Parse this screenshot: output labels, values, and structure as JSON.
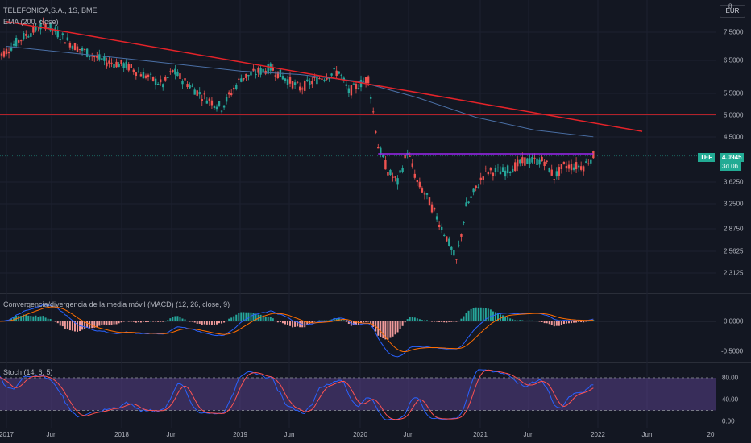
{
  "header": {
    "symbol_title": "TELEFONICA,S.A., 1S, BME",
    "indicator_ema": "EMA (200, close)",
    "currency": "EUR"
  },
  "price_axis": {
    "ticks": [
      "7.5000",
      "6.5000",
      "5.5000",
      "5.0000",
      "4.5000",
      "3.6250",
      "3.2500",
      "2.8750",
      "2.5625",
      "2.3125"
    ],
    "top_partial": "8"
  },
  "last_price": {
    "ticker": "TEF",
    "value": "4.0945",
    "countdown": "3d 0h"
  },
  "macd": {
    "title": "Convergencia/divergencia de la media móvil (MACD) (12, 26, close, 9)",
    "ticks": [
      "0.0000",
      "-0.5000"
    ]
  },
  "stoch": {
    "title": "Stoch (14, 6, 5)",
    "ticks": [
      "80.00",
      "40.00",
      "0.00"
    ]
  },
  "time_axis": {
    "labels": [
      "2017",
      "Jun",
      "2018",
      "Jun",
      "2019",
      "Jun",
      "2020",
      "Jun",
      "2021",
      "Jun",
      "2022",
      "Jun",
      "20"
    ]
  },
  "colors": {
    "background": "#131722",
    "up": "#26a69a",
    "down": "#ef5350",
    "ema": "#4a6fa5",
    "trendline": "#e52329",
    "resistance": "#9c27f0",
    "macd_line": "#2962ff",
    "signal_line": "#ff6d00",
    "stoch_band": "#7e57c2"
  },
  "chart_data": {
    "type": "candlestick",
    "x_range": [
      "2016-12",
      "2022-12"
    ],
    "y_scale": "log",
    "y_range": [
      2.2,
      8.3
    ],
    "ema_points": [
      [
        "2017-01",
        7.0
      ],
      [
        "2018-01",
        6.6
      ],
      [
        "2019-01",
        6.2
      ],
      [
        "2019-07",
        6.1
      ],
      [
        "2020-01",
        5.9
      ],
      [
        "2020-07",
        5.45
      ],
      [
        "2021-01",
        4.95
      ],
      [
        "2021-07",
        4.65
      ],
      [
        "2022-01",
        4.5
      ]
    ],
    "close_path": [
      [
        "2016-12",
        6.6
      ],
      [
        "2017-03",
        7.4
      ],
      [
        "2017-05",
        7.8
      ],
      [
        "2017-08",
        7.0
      ],
      [
        "2017-11",
        6.5
      ],
      [
        "2018-01",
        6.4
      ],
      [
        "2018-03",
        6.1
      ],
      [
        "2018-05",
        5.8
      ],
      [
        "2018-06",
        6.2
      ],
      [
        "2018-09",
        5.5
      ],
      [
        "2018-11",
        5.2
      ],
      [
        "2019-01",
        6.0
      ],
      [
        "2019-04",
        6.3
      ],
      [
        "2019-07",
        5.7
      ],
      [
        "2019-09",
        6.0
      ],
      [
        "2019-11",
        6.2
      ],
      [
        "2019-12",
        5.6
      ],
      [
        "2020-02",
        6.0
      ],
      [
        "2020-03",
        4.3
      ],
      [
        "2020-04",
        3.8
      ],
      [
        "2020-05",
        3.6
      ],
      [
        "2020-06",
        4.2
      ],
      [
        "2020-07",
        3.6
      ],
      [
        "2020-08",
        3.35
      ],
      [
        "2020-10",
        2.75
      ],
      [
        "2020-11",
        2.45
      ],
      [
        "2020-12",
        3.2
      ],
      [
        "2021-02",
        3.8
      ],
      [
        "2021-04",
        3.8
      ],
      [
        "2021-06",
        4.0
      ],
      [
        "2021-08",
        4.0
      ],
      [
        "2021-09",
        3.7
      ],
      [
        "2021-10",
        3.9
      ],
      [
        "2021-12",
        3.9
      ],
      [
        "2022-01",
        4.1
      ]
    ],
    "trendline": [
      [
        "2017-01",
        7.9
      ],
      [
        "2022-06",
        4.62
      ]
    ],
    "horizontal_lines": [
      5.02
    ],
    "resistance_line": {
      "from": "2020-03",
      "to": "2022-01",
      "value": 4.14
    },
    "last_value": 4.0945,
    "macd_range": [
      -0.7,
      0.3
    ],
    "stoch_range": [
      0,
      100
    ],
    "stoch_bands": [
      20,
      80
    ]
  }
}
